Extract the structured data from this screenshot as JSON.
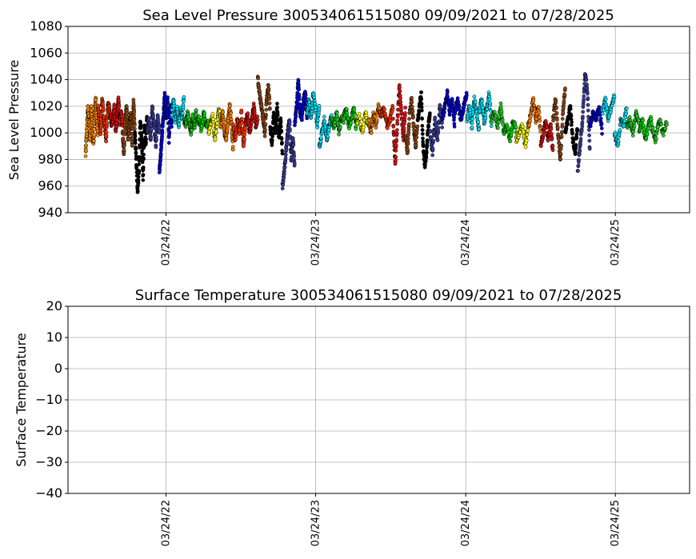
{
  "chart_data": [
    {
      "type": "scatter",
      "title": "Sea Level Pressure 300534061515080  09/09/2021 to 07/28/2025",
      "xlabel": "",
      "ylabel": "Sea Level Pressure",
      "x_range": [
        "2021-09-09",
        "2025-07-28"
      ],
      "ylim": [
        940,
        1080
      ],
      "yticks": [
        940,
        960,
        980,
        1000,
        1020,
        1040,
        1060,
        1080
      ],
      "xticks": [
        {
          "date": "2022-03-24",
          "label": "03/24/22"
        },
        {
          "date": "2023-03-24",
          "label": "03/24/23"
        },
        {
          "date": "2024-03-24",
          "label": "03/24/24"
        },
        {
          "date": "2025-03-24",
          "label": "03/24/25"
        }
      ],
      "grid": true,
      "monthly_colors": [
        "#ff8c00",
        "#ff3300",
        "#dd1111",
        "#8b4513",
        "#000000",
        "#3b3b9b",
        "#0000dd",
        "#00e5ff",
        "#00dd00",
        "#22cc22",
        "#ffff00",
        "#ff8000"
      ],
      "series": [
        {
          "start": "2021-09-09",
          "end": "2021-10-09",
          "color": "#ff8c00",
          "ys": [
            985,
            1000,
            1018,
            1010,
            995,
            1020,
            1005,
            990,
            1012,
            1025,
            1008,
            998
          ]
        },
        {
          "start": "2021-10-09",
          "end": "2021-11-08",
          "color": "#ff3300",
          "ys": [
            1020,
            1010,
            1000,
            1025,
            1015,
            1005,
            995,
            1018,
            1022,
            1008
          ]
        },
        {
          "start": "2021-11-08",
          "end": "2021-12-08",
          "color": "#dd1111",
          "ys": [
            1015,
            1005,
            1010,
            1020,
            1000,
            1012,
            1025,
            1008,
            1018,
            1002
          ]
        },
        {
          "start": "2021-12-08",
          "end": "2022-01-07",
          "color": "#8b4513",
          "ys": [
            1000,
            985,
            1010,
            1020,
            995,
            1005,
            1015,
            990,
            1025,
            1003
          ]
        },
        {
          "start": "2022-01-07",
          "end": "2022-02-06",
          "color": "#000000",
          "ys": [
            1000,
            980,
            955,
            970,
            1010,
            995,
            965,
            1005,
            990,
            1015
          ]
        },
        {
          "start": "2022-02-06",
          "end": "2022-03-08",
          "color": "#3b3b9b",
          "ys": [
            1000,
            1010,
            995,
            1020,
            1005,
            990,
            1012,
            1000
          ]
        },
        {
          "start": "2022-03-08",
          "end": "2022-04-07",
          "color": "#0000dd",
          "ys": [
            970,
            985,
            1000,
            1015,
            1030,
            1010,
            1025,
            995,
            1020,
            1005
          ]
        },
        {
          "start": "2022-04-07",
          "end": "2022-05-07",
          "color": "#00e5ff",
          "ys": [
            1015,
            1025,
            1010,
            1020,
            1005,
            1018,
            1012,
            1028
          ]
        },
        {
          "start": "2022-05-07",
          "end": "2022-06-06",
          "color": "#22cc22",
          "ys": [
            1010,
            1005,
            1015,
            1008,
            1000,
            1012,
            1003,
            1018
          ]
        },
        {
          "start": "2022-06-06",
          "end": "2022-07-06",
          "color": "#00dd00",
          "ys": [
            1008,
            1012,
            1002,
            1015,
            1005,
            1010
          ]
        },
        {
          "start": "2022-07-06",
          "end": "2022-08-05",
          "color": "#ffff00",
          "ys": [
            1000,
            1008,
            1012,
            995,
            1005,
            1018,
            1010
          ]
        },
        {
          "start": "2022-08-05",
          "end": "2022-09-04",
          "color": "#ff8000",
          "ys": [
            1005,
            1015,
            1000,
            995,
            1010,
            1020,
            1008,
            985
          ]
        },
        {
          "start": "2022-09-04",
          "end": "2022-10-04",
          "color": "#ff3300",
          "ys": [
            1005,
            995,
            1010,
            1000,
            1015,
            990,
            1008
          ]
        },
        {
          "start": "2022-10-04",
          "end": "2022-11-03",
          "color": "#dd1111",
          "ys": [
            1008,
            1015,
            1000,
            1010,
            1020,
            1005,
            1012
          ]
        },
        {
          "start": "2022-11-03",
          "end": "2022-12-03",
          "color": "#8b4513",
          "ys": [
            1040,
            1030,
            1020,
            1010,
            1000,
            1025,
            1035,
            1015
          ]
        },
        {
          "start": "2022-12-03",
          "end": "2023-01-02",
          "color": "#000000",
          "ys": [
            1005,
            990,
            1015,
            1000,
            1020,
            995,
            1010,
            985
          ]
        },
        {
          "start": "2023-01-02",
          "end": "2023-02-01",
          "color": "#3b3b9b",
          "ys": [
            960,
            970,
            985,
            1000,
            1010,
            980,
            995,
            975
          ]
        },
        {
          "start": "2023-02-01",
          "end": "2023-03-03",
          "color": "#0000dd",
          "ys": [
            1005,
            1020,
            1040,
            1015,
            1010,
            1025,
            1030,
            1012
          ]
        },
        {
          "start": "2023-03-03",
          "end": "2023-04-02",
          "color": "#00e5ff",
          "ys": [
            1015,
            1025,
            1010,
            1030,
            1020,
            1005,
            1022
          ]
        },
        {
          "start": "2023-04-02",
          "end": "2023-05-02",
          "color": "#00e5ff",
          "ys": [
            990,
            1000,
            1010,
            995,
            1005,
            1015
          ]
        },
        {
          "start": "2023-05-02",
          "end": "2023-06-01",
          "color": "#22cc22",
          "ys": [
            1010,
            1005,
            1015,
            1000,
            1012,
            1008
          ]
        },
        {
          "start": "2023-06-01",
          "end": "2023-07-01",
          "color": "#00dd00",
          "ys": [
            1012,
            1018,
            1005,
            1010,
            1020,
            1002
          ]
        },
        {
          "start": "2023-07-01",
          "end": "2023-07-31",
          "color": "#ffff00",
          "ys": [
            1008,
            1012,
            1000,
            1015,
            1005
          ]
        },
        {
          "start": "2023-07-31",
          "end": "2023-08-30",
          "color": "#ff8000",
          "ys": [
            1010,
            1000,
            1015,
            1005,
            1020,
            1012
          ]
        },
        {
          "start": "2023-08-30",
          "end": "2023-09-29",
          "color": "#ff3300",
          "ys": [
            1012,
            1018,
            1005,
            1010,
            1020
          ]
        },
        {
          "start": "2023-09-29",
          "end": "2023-10-29",
          "color": "#dd1111",
          "ys": [
            1010,
            975,
            1005,
            1035,
            1015,
            995,
            1020
          ]
        },
        {
          "start": "2023-10-29",
          "end": "2023-11-28",
          "color": "#8b4513",
          "ys": [
            1000,
            985,
            1015,
            1025,
            1005,
            990,
            1010
          ]
        },
        {
          "start": "2023-11-28",
          "end": "2023-12-28",
          "color": "#000000",
          "ys": [
            1010,
            1020,
            1030,
            990,
            975,
            985,
            1005,
            1015
          ]
        },
        {
          "start": "2023-12-28",
          "end": "2024-01-27",
          "color": "#3b3b9b",
          "ys": [
            1000,
            985,
            1010,
            995,
            1020,
            1005
          ]
        },
        {
          "start": "2024-01-27",
          "end": "2024-02-26",
          "color": "#0000dd",
          "ys": [
            1010,
            1020,
            1030,
            1015,
            1025,
            1005
          ]
        },
        {
          "start": "2024-02-26",
          "end": "2024-03-27",
          "color": "#0000dd",
          "ys": [
            1015,
            1025,
            1010,
            1020,
            1030
          ]
        },
        {
          "start": "2024-03-27",
          "end": "2024-04-26",
          "color": "#00e5ff",
          "ys": [
            1010,
            1020,
            1005,
            1025,
            1015,
            1000
          ]
        },
        {
          "start": "2024-04-26",
          "end": "2024-05-26",
          "color": "#00e5ff",
          "ys": [
            1015,
            1025,
            1008,
            1018,
            1030,
            1005
          ]
        },
        {
          "start": "2024-05-26",
          "end": "2024-06-25",
          "color": "#22cc22",
          "ys": [
            1010,
            1015,
            1005,
            1020,
            1000
          ]
        },
        {
          "start": "2024-06-25",
          "end": "2024-07-25",
          "color": "#00dd00",
          "ys": [
            1000,
            1005,
            995,
            1010,
            1002
          ]
        },
        {
          "start": "2024-07-25",
          "end": "2024-08-24",
          "color": "#ffff00",
          "ys": [
            995,
            1000,
            1005,
            990,
            1008
          ]
        },
        {
          "start": "2024-08-24",
          "end": "2024-09-23",
          "color": "#ff8000",
          "ys": [
            1005,
            1015,
            1025,
            1010,
            1020,
            1000
          ]
        },
        {
          "start": "2024-09-23",
          "end": "2024-10-23",
          "color": "#dd1111",
          "ys": [
            990,
            1000,
            1010,
            995,
            1005,
            985
          ]
        },
        {
          "start": "2024-10-23",
          "end": "2024-11-22",
          "color": "#8b4513",
          "ys": [
            1010,
            1025,
            1000,
            980,
            1015,
            1035
          ]
        },
        {
          "start": "2024-11-22",
          "end": "2024-12-22",
          "color": "#000000",
          "ys": [
            1000,
            1010,
            1020,
            995,
            985,
            1005
          ]
        },
        {
          "start": "2024-12-22",
          "end": "2025-01-21",
          "color": "#3b3b9b",
          "ys": [
            970,
            990,
            1010,
            1045,
            1030,
            985
          ]
        },
        {
          "start": "2025-01-21",
          "end": "2025-02-20",
          "color": "#0000dd",
          "ys": [
            1005,
            1015,
            1010,
            1020,
            1000
          ]
        },
        {
          "start": "2025-02-20",
          "end": "2025-03-22",
          "color": "#00e5ff",
          "ys": [
            1015,
            1025,
            1010,
            1020,
            1028
          ]
        },
        {
          "start": "2025-03-22",
          "end": "2025-04-21",
          "color": "#00e5ff",
          "ys": [
            1000,
            990,
            1010,
            1005,
            1020
          ]
        },
        {
          "start": "2025-04-21",
          "end": "2025-05-21",
          "color": "#22cc22",
          "ys": [
            1005,
            1010,
            1000,
            1015,
            1008
          ]
        },
        {
          "start": "2025-05-21",
          "end": "2025-06-20",
          "color": "#00dd00",
          "ys": [
            1000,
            1010,
            995,
            1005,
            1012
          ]
        },
        {
          "start": "2025-06-20",
          "end": "2025-07-28",
          "color": "#22cc22",
          "ys": [
            1005,
            995,
            1010,
            1000,
            1008
          ]
        }
      ]
    },
    {
      "type": "scatter",
      "title": "Surface Temperature 300534061515080  09/09/2021 to 07/28/2025",
      "xlabel": "",
      "ylabel": "Surface Temperature",
      "x_range": [
        "2021-09-09",
        "2025-07-28"
      ],
      "ylim": [
        -40,
        20
      ],
      "yticks": [
        -40,
        -30,
        -20,
        -10,
        0,
        10,
        20
      ],
      "ytick_labels": [
        "−40",
        "−30",
        "−20",
        "−10",
        "0",
        "10",
        "20"
      ],
      "xticks": [
        {
          "date": "2022-03-24",
          "label": "03/24/22"
        },
        {
          "date": "2023-03-24",
          "label": "03/24/23"
        },
        {
          "date": "2024-03-24",
          "label": "03/24/24"
        },
        {
          "date": "2025-03-24",
          "label": "03/24/25"
        }
      ],
      "grid": true,
      "series": []
    }
  ]
}
